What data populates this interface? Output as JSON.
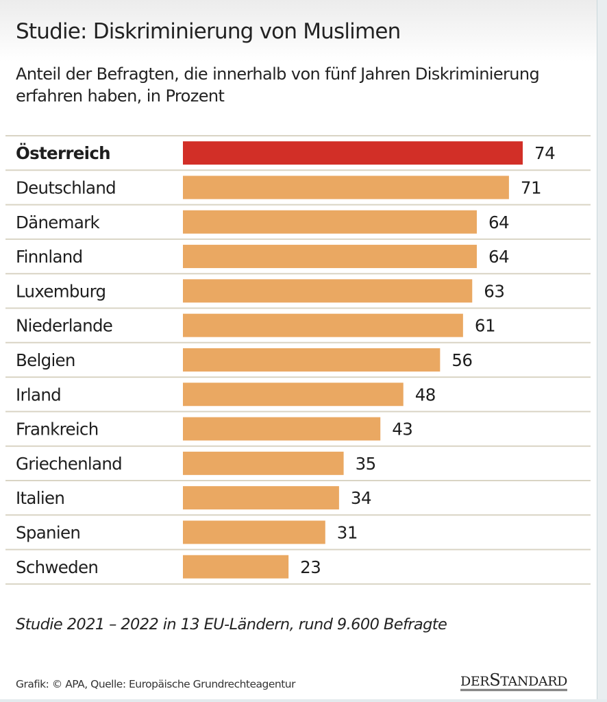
{
  "header": {
    "title": "Studie: Diskriminierung von Muslimen",
    "subtitle": "Anteil der Befragten, die innerhalb von fünf Jahren Diskriminierung erfahren haben, in Prozent"
  },
  "chart_data": {
    "type": "bar",
    "orientation": "horizontal",
    "title": "Studie: Diskriminierung von Muslimen",
    "subtitle": "Anteil der Befragten, die innerhalb von fünf Jahren Diskriminierung erfahren haben, in Prozent",
    "xlabel": "",
    "ylabel": "",
    "unit": "Prozent",
    "xlim": [
      0,
      74
    ],
    "grid": false,
    "legend": "none",
    "categories": [
      "Österreich",
      "Deutschland",
      "Dänemark",
      "Finnland",
      "Luxemburg",
      "Niederlande",
      "Belgien",
      "Irland",
      "Frankreich",
      "Griechenland",
      "Italien",
      "Spanien",
      "Schweden"
    ],
    "values": [
      74,
      71,
      64,
      64,
      63,
      61,
      56,
      48,
      43,
      35,
      34,
      31,
      23
    ],
    "highlight": "Österreich",
    "colors": {
      "highlight": "#d22f27",
      "default": "#eaa862",
      "separator": "#d9d4c4"
    }
  },
  "footer": {
    "note": "Studie 2021 – 2022 in 13 EU-Ländern, rund 9.600 Befragte",
    "source": "Grafik: © APA, Quelle: Europäische Grundrechteagentur",
    "brand_der": "DER",
    "brand_s": "S",
    "brand_tandard": "TANDARD"
  }
}
